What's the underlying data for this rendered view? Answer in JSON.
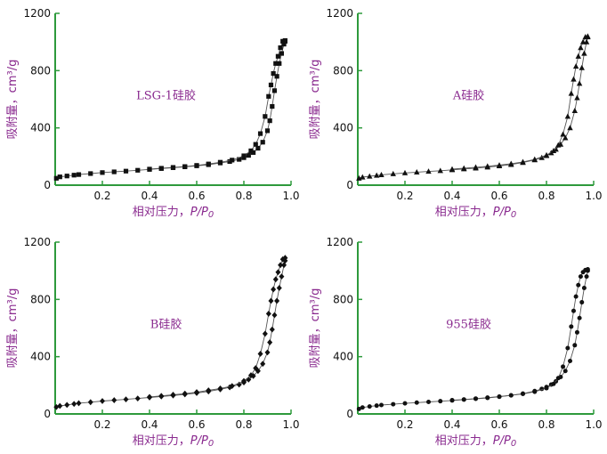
{
  "colors": {
    "axis": "#2e9a3c",
    "label": "#8a2a8f",
    "ticks": "#111111",
    "series": "#111111",
    "line": "#555555"
  },
  "chart_data": [
    {
      "type": "scatter",
      "title": "LSG-1硅胶",
      "marker": "square",
      "xlabel": "相对压力，P/P0",
      "ylabel": "吸附量，cm³/g",
      "xlim": [
        0,
        1.0
      ],
      "ylim": [
        0,
        1200
      ],
      "xticks": [
        "0.2",
        "0.4",
        "0.6",
        "0.8",
        "1.0"
      ],
      "yticks": [
        "0",
        "400",
        "800",
        "1200"
      ],
      "series": [
        {
          "x": [
            0.005,
            0.02,
            0.05,
            0.08,
            0.1,
            0.15,
            0.2,
            0.25,
            0.3,
            0.35,
            0.4,
            0.45,
            0.5,
            0.55,
            0.6,
            0.65,
            0.7,
            0.74,
            0.78,
            0.8,
            0.82,
            0.84,
            0.86,
            0.88,
            0.9,
            0.91,
            0.92,
            0.93,
            0.94,
            0.95,
            0.96,
            0.97,
            0.975
          ],
          "y": [
            48,
            58,
            64,
            70,
            74,
            81,
            88,
            93,
            98,
            104,
            110,
            116,
            122,
            128,
            135,
            143,
            155,
            165,
            180,
            192,
            208,
            228,
            258,
            300,
            380,
            450,
            550,
            660,
            760,
            850,
            920,
            985,
            1005
          ]
        },
        {
          "x": [
            0.975,
            0.965,
            0.955,
            0.945,
            0.935,
            0.925,
            0.915,
            0.905,
            0.89,
            0.87,
            0.85,
            0.83,
            0.8,
            0.75,
            0.7,
            0.65,
            0.6,
            0.55,
            0.5,
            0.45,
            0.4
          ],
          "y": [
            1010,
            1005,
            960,
            900,
            850,
            780,
            700,
            620,
            480,
            360,
            285,
            240,
            205,
            175,
            160,
            148,
            138,
            130,
            124,
            118,
            112
          ]
        }
      ]
    },
    {
      "type": "scatter",
      "title": "A硅胶",
      "marker": "triangle",
      "xlabel": "相对压力，P/P0",
      "ylabel": "吸附量，cm³/g",
      "xlim": [
        0,
        1.0
      ],
      "ylim": [
        0,
        1200
      ],
      "xticks": [
        "0.2",
        "0.4",
        "0.6",
        "0.8",
        "1.0"
      ],
      "yticks": [
        "0",
        "400",
        "800",
        "1200"
      ],
      "series": [
        {
          "x": [
            0.005,
            0.02,
            0.05,
            0.08,
            0.1,
            0.15,
            0.2,
            0.25,
            0.3,
            0.35,
            0.4,
            0.45,
            0.5,
            0.55,
            0.6,
            0.65,
            0.7,
            0.75,
            0.78,
            0.8,
            0.82,
            0.84,
            0.86,
            0.88,
            0.9,
            0.92,
            0.93,
            0.94,
            0.95,
            0.96,
            0.97,
            0.975
          ],
          "y": [
            48,
            56,
            62,
            68,
            72,
            79,
            85,
            91,
            96,
            101,
            107,
            113,
            119,
            126,
            134,
            144,
            158,
            176,
            192,
            206,
            225,
            250,
            285,
            330,
            400,
            520,
            610,
            710,
            820,
            920,
            1000,
            1035
          ]
        },
        {
          "x": [
            0.975,
            0.965,
            0.955,
            0.945,
            0.935,
            0.925,
            0.915,
            0.905,
            0.89,
            0.87,
            0.85,
            0.83,
            0.8,
            0.75,
            0.7,
            0.65,
            0.6,
            0.55,
            0.5,
            0.45,
            0.4
          ],
          "y": [
            1040,
            1035,
            1000,
            960,
            900,
            830,
            740,
            640,
            480,
            355,
            280,
            240,
            210,
            180,
            162,
            150,
            140,
            132,
            125,
            118,
            112
          ]
        }
      ]
    },
    {
      "type": "scatter",
      "title": "B硅胶",
      "marker": "diamond",
      "xlabel": "相对压力，P/P0",
      "ylabel": "吸附量，cm³/g",
      "xlim": [
        0,
        1.0
      ],
      "ylim": [
        0,
        1200
      ],
      "xticks": [
        "0.2",
        "0.4",
        "0.6",
        "0.8",
        "1.0"
      ],
      "yticks": [
        "0",
        "400",
        "800",
        "1200"
      ],
      "series": [
        {
          "x": [
            0.005,
            0.02,
            0.05,
            0.08,
            0.1,
            0.15,
            0.2,
            0.25,
            0.3,
            0.35,
            0.4,
            0.45,
            0.5,
            0.55,
            0.6,
            0.65,
            0.7,
            0.74,
            0.78,
            0.8,
            0.82,
            0.84,
            0.86,
            0.88,
            0.9,
            0.91,
            0.92,
            0.93,
            0.94,
            0.95,
            0.96,
            0.97,
            0.975
          ],
          "y": [
            48,
            56,
            63,
            70,
            75,
            82,
            90,
            96,
            102,
            108,
            115,
            122,
            129,
            137,
            146,
            157,
            172,
            186,
            205,
            220,
            240,
            265,
            300,
            350,
            430,
            500,
            590,
            690,
            790,
            880,
            960,
            1040,
            1070
          ]
        },
        {
          "x": [
            0.975,
            0.965,
            0.955,
            0.945,
            0.935,
            0.925,
            0.915,
            0.905,
            0.89,
            0.87,
            0.85,
            0.83,
            0.8,
            0.75,
            0.7,
            0.65,
            0.6,
            0.55,
            0.5,
            0.45,
            0.4
          ],
          "y": [
            1090,
            1080,
            1040,
            990,
            940,
            870,
            790,
            700,
            560,
            420,
            320,
            270,
            230,
            195,
            178,
            165,
            152,
            142,
            134,
            126,
            119
          ]
        }
      ]
    },
    {
      "type": "scatter",
      "title": "955硅胶",
      "marker": "circle",
      "xlabel": "相对压力，P/P0",
      "ylabel": "吸附量，cm³/g",
      "xlim": [
        0,
        1.0
      ],
      "ylim": [
        0,
        1200
      ],
      "xticks": [
        "0.2",
        "0.4",
        "0.6",
        "0.8",
        "1.0"
      ],
      "yticks": [
        "0",
        "400",
        "800",
        "1200"
      ],
      "series": [
        {
          "x": [
            0.005,
            0.02,
            0.05,
            0.08,
            0.1,
            0.15,
            0.2,
            0.25,
            0.3,
            0.35,
            0.4,
            0.45,
            0.5,
            0.55,
            0.6,
            0.65,
            0.7,
            0.75,
            0.78,
            0.8,
            0.82,
            0.84,
            0.86,
            0.88,
            0.9,
            0.92,
            0.93,
            0.94,
            0.95,
            0.96,
            0.97,
            0.975
          ],
          "y": [
            35,
            45,
            52,
            58,
            62,
            68,
            74,
            79,
            84,
            89,
            94,
            100,
            106,
            112,
            120,
            130,
            142,
            160,
            175,
            188,
            205,
            228,
            258,
            300,
            370,
            480,
            570,
            670,
            780,
            880,
            960,
            1000
          ]
        },
        {
          "x": [
            0.975,
            0.965,
            0.955,
            0.945,
            0.935,
            0.925,
            0.915,
            0.905,
            0.89,
            0.87,
            0.85,
            0.83,
            0.8,
            0.75,
            0.7,
            0.65,
            0.6,
            0.55,
            0.5,
            0.45,
            0.4
          ],
          "y": [
            1010,
            1005,
            990,
            960,
            900,
            820,
            720,
            610,
            460,
            330,
            250,
            210,
            180,
            155,
            140,
            130,
            121,
            114,
            107,
            101,
            96
          ]
        }
      ]
    }
  ]
}
